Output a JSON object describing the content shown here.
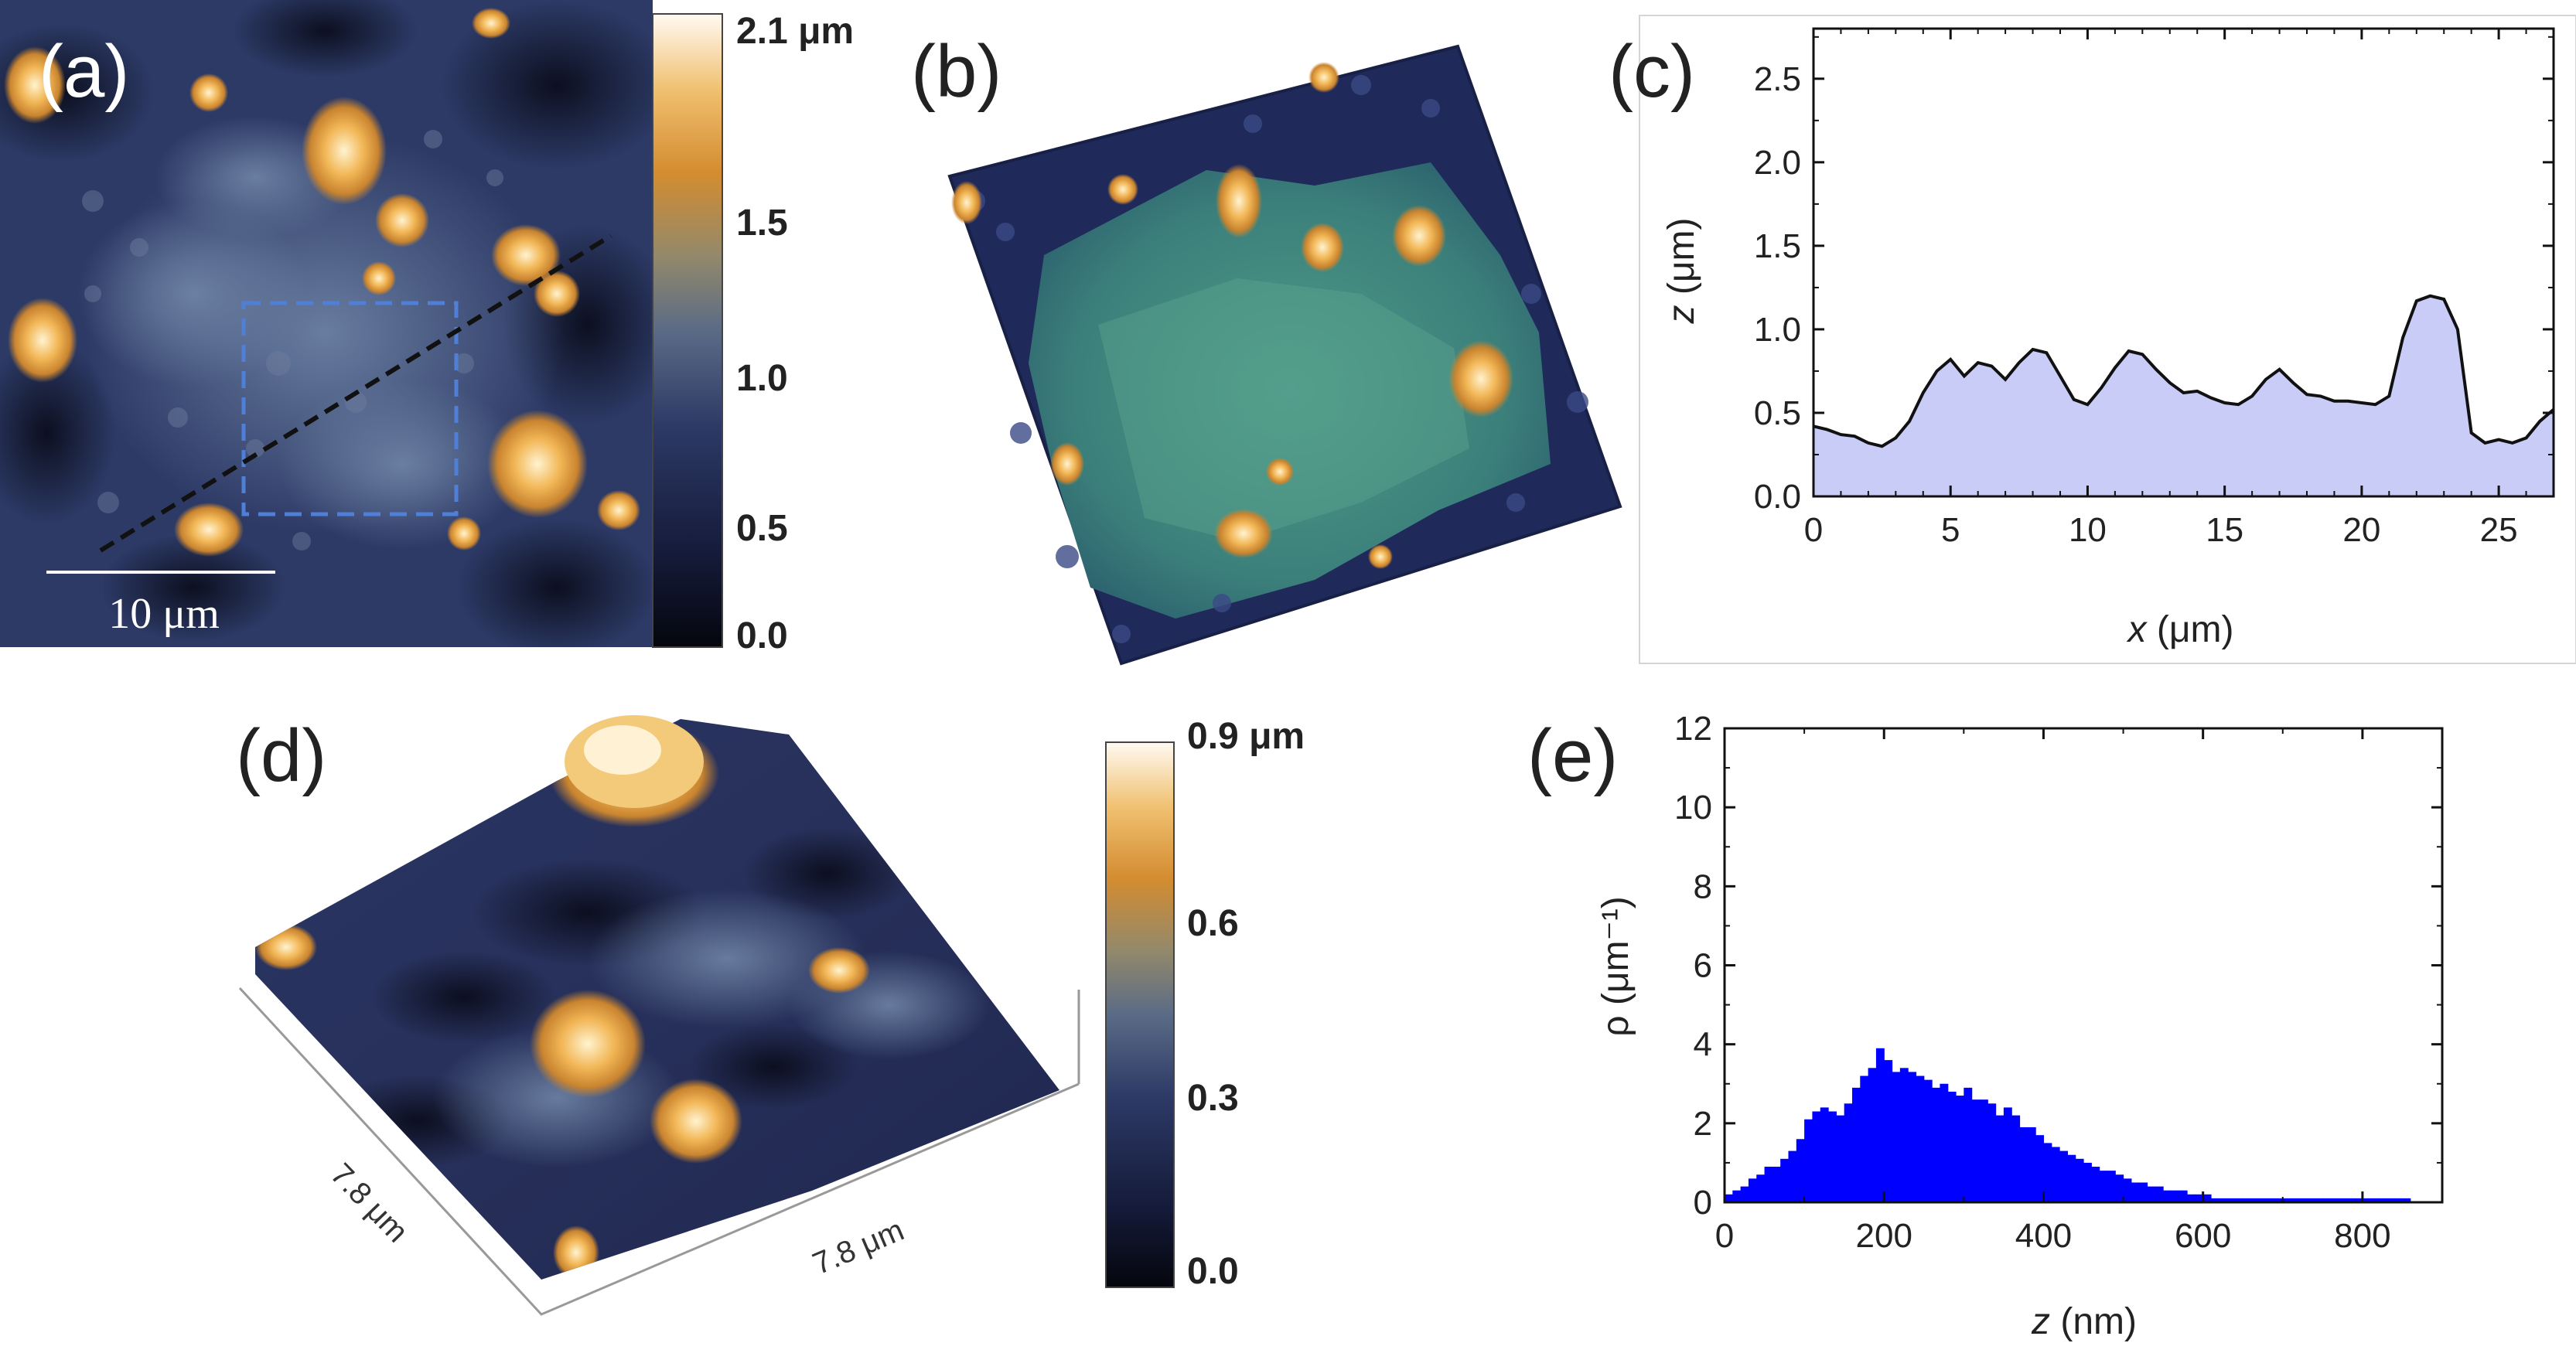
{
  "panels": {
    "a": {
      "label": "(a)",
      "scale_bar": "10 μm",
      "colorbar": {
        "ticks": [
          "2.1 μm",
          "1.5",
          "1.0",
          "0.5",
          "0.0"
        ],
        "values": [
          2.1,
          1.5,
          1.0,
          0.5,
          0.0
        ],
        "max": 2.1
      }
    },
    "b": {
      "label": "(b)"
    },
    "c": {
      "label": "(c)"
    },
    "d": {
      "label": "(d)",
      "dim_x": "7.8 μm",
      "dim_y": "7.8 μm",
      "colorbar": {
        "ticks": [
          "0.9 μm",
          "0.6",
          "0.3",
          "0.0"
        ],
        "values": [
          0.9,
          0.6,
          0.3,
          0.0
        ],
        "max": 0.9
      }
    },
    "e": {
      "label": "(e)"
    }
  },
  "colors": {
    "cmap_dark": "#0b0f1e",
    "cmap_navy": "#2a3563",
    "cmap_mid": "#5c6f8e",
    "cmap_orange": "#d89434",
    "cmap_light": "#fff4e2",
    "profile_fill": "#c9ccf7",
    "hist_fill": "#0000ff"
  },
  "chart_data": [
    {
      "id": "c",
      "type": "area",
      "title": "",
      "xlabel_var": "x",
      "xlabel_unit": " (μm)",
      "ylabel_var": "z",
      "ylabel_unit": " (μm)",
      "xlim": [
        0,
        27
      ],
      "ylim": [
        0,
        2.8
      ],
      "xticks": [
        0,
        5,
        10,
        15,
        20,
        25
      ],
      "yticks": [
        0.0,
        0.5,
        1.0,
        1.5,
        2.0,
        2.5
      ],
      "ytick_labels": [
        "0.0",
        "0.5",
        "1.0",
        "1.5",
        "2.0",
        "2.5"
      ],
      "x": [
        0,
        0.5,
        1,
        1.5,
        2,
        2.5,
        3,
        3.5,
        4,
        4.5,
        5,
        5.5,
        6,
        6.5,
        7,
        7.5,
        8,
        8.5,
        9,
        9.5,
        10,
        10.5,
        11,
        11.5,
        12,
        12.5,
        13,
        13.5,
        14,
        14.5,
        15,
        15.5,
        16,
        16.5,
        17,
        17.5,
        18,
        18.5,
        19,
        19.5,
        20,
        20.5,
        21,
        21.5,
        22,
        22.5,
        23,
        23.5,
        24,
        24.5,
        25,
        25.5,
        26,
        26.5,
        27
      ],
      "y": [
        0.42,
        0.4,
        0.37,
        0.36,
        0.32,
        0.3,
        0.35,
        0.45,
        0.62,
        0.75,
        0.82,
        0.72,
        0.8,
        0.78,
        0.7,
        0.8,
        0.88,
        0.86,
        0.72,
        0.58,
        0.55,
        0.65,
        0.77,
        0.87,
        0.85,
        0.76,
        0.68,
        0.62,
        0.63,
        0.59,
        0.56,
        0.55,
        0.6,
        0.7,
        0.76,
        0.68,
        0.61,
        0.6,
        0.57,
        0.57,
        0.56,
        0.55,
        0.6,
        0.95,
        1.17,
        1.2,
        1.18,
        1.0,
        0.38,
        0.32,
        0.34,
        0.32,
        0.35,
        0.45,
        0.52
      ]
    },
    {
      "id": "e",
      "type": "bar",
      "title": "",
      "xlabel_var": "z",
      "xlabel_unit": " (nm)",
      "ylabel": "ρ (μm⁻¹)",
      "xlim": [
        0,
        900
      ],
      "ylim": [
        0,
        12
      ],
      "xticks": [
        0,
        200,
        400,
        600,
        800
      ],
      "yticks": [
        0,
        2,
        4,
        6,
        8,
        10,
        12
      ],
      "bin_width": 10,
      "bin_starts": [
        0,
        10,
        20,
        30,
        40,
        50,
        60,
        70,
        80,
        90,
        100,
        110,
        120,
        130,
        140,
        150,
        160,
        170,
        180,
        190,
        200,
        210,
        220,
        230,
        240,
        250,
        260,
        270,
        280,
        290,
        300,
        310,
        320,
        330,
        340,
        350,
        360,
        370,
        380,
        390,
        400,
        410,
        420,
        430,
        440,
        450,
        460,
        470,
        480,
        490,
        500,
        510,
        520,
        530,
        540,
        550,
        560,
        570,
        580,
        590,
        600,
        610,
        620,
        630,
        640,
        650,
        660,
        670,
        680,
        690,
        700,
        710,
        720,
        730,
        740,
        750,
        760,
        770,
        780,
        790,
        800,
        810,
        820,
        830,
        840,
        850
      ],
      "values": [
        0.2,
        0.3,
        0.4,
        0.6,
        0.7,
        0.9,
        0.9,
        1.1,
        1.3,
        1.6,
        2.1,
        2.3,
        2.4,
        2.3,
        2.2,
        2.5,
        2.9,
        3.2,
        3.4,
        3.9,
        3.6,
        3.3,
        3.4,
        3.3,
        3.2,
        3.1,
        2.9,
        3.0,
        2.8,
        2.7,
        2.9,
        2.6,
        2.6,
        2.5,
        2.2,
        2.4,
        2.2,
        1.9,
        1.9,
        1.7,
        1.5,
        1.4,
        1.3,
        1.2,
        1.1,
        1.0,
        0.9,
        0.8,
        0.8,
        0.7,
        0.6,
        0.5,
        0.5,
        0.4,
        0.4,
        0.3,
        0.3,
        0.3,
        0.2,
        0.2,
        0.2,
        0.1,
        0.1,
        0.1,
        0.1,
        0.1,
        0.1,
        0.1,
        0.1,
        0.1,
        0.1,
        0.1,
        0.1,
        0.1,
        0.1,
        0.1,
        0.1,
        0.1,
        0.1,
        0.1,
        0.1,
        0.1,
        0.1,
        0.1,
        0.1,
        0.1
      ]
    }
  ]
}
